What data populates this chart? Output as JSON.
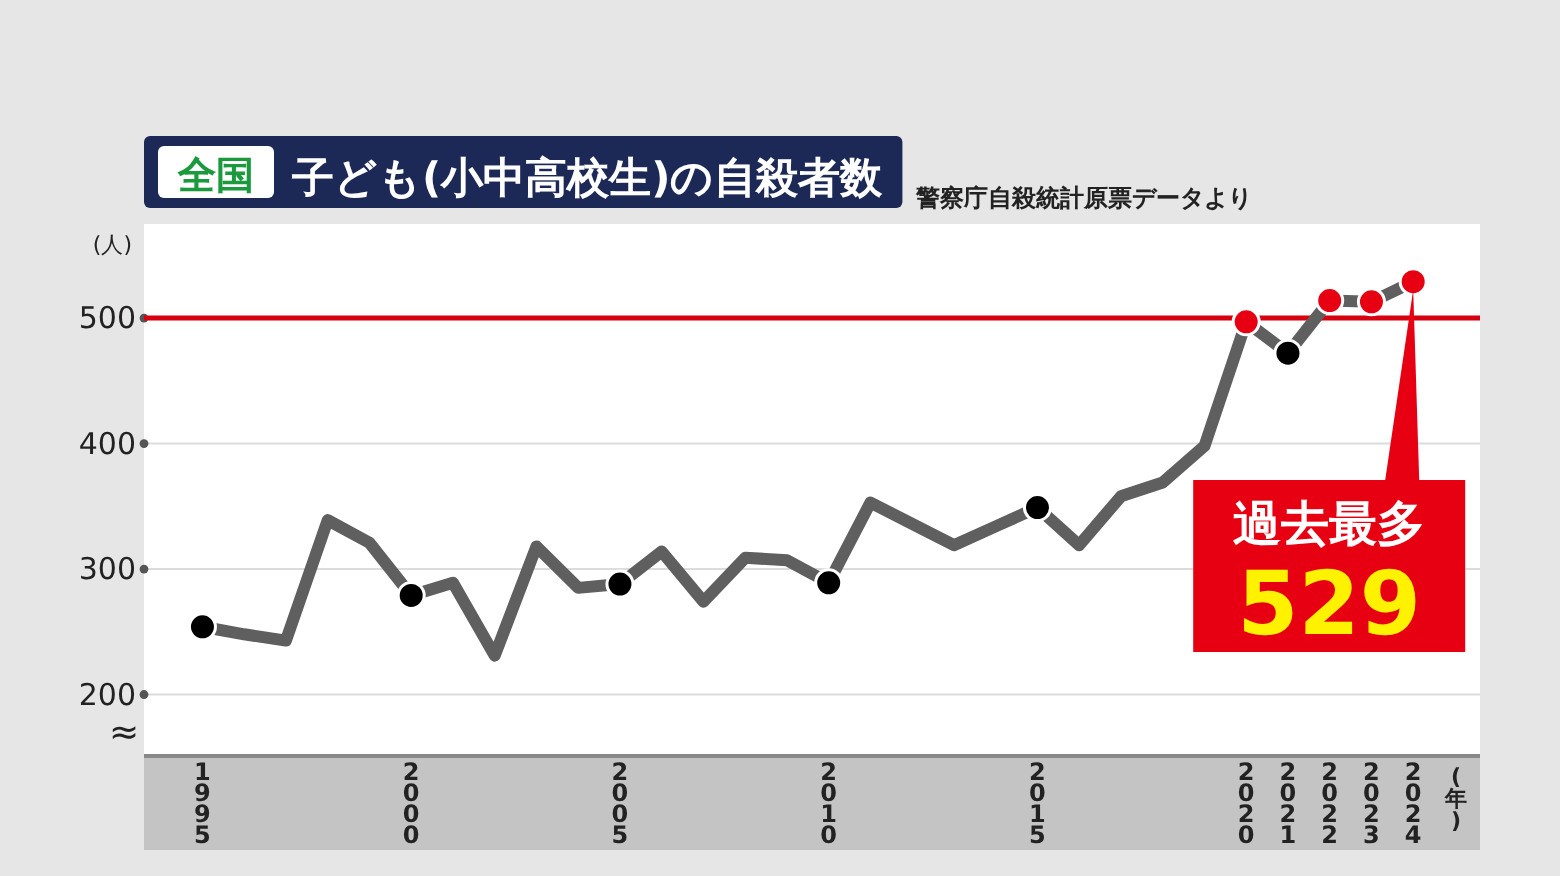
{
  "chart_data": {
    "type": "line",
    "title": "子ども(小中高校生)の自殺者数",
    "ylabel": "(人)",
    "xlabel": "(年)",
    "annotations": [
      "全国",
      "警察庁自殺統計原票データより",
      "≈",
      {
        "text": "過去最多 529",
        "x": 2024,
        "y": 529
      }
    ],
    "xlim": [
      1993.6,
      2025.6
    ],
    "ylim": [
      151,
      575
    ],
    "xticks": [
      1995,
      2000,
      2005,
      2010,
      2015,
      2020,
      2021,
      2022,
      2023,
      2024
    ],
    "yticks": [
      200,
      300,
      400,
      500
    ],
    "grid": "y",
    "ref_lines": [
      {
        "axis": "y",
        "value": 500,
        "color": "#d7000f"
      }
    ],
    "series": [
      {
        "type": "line",
        "color": "#5f5f5f",
        "marker": "none",
        "x": [
          1995,
          1996,
          1997,
          1998,
          1999,
          2000,
          2001,
          2002,
          2003,
          2004,
          2005,
          2006,
          2007,
          2008,
          2009,
          2010,
          2011,
          2012,
          2013,
          2014,
          2015,
          2016,
          2017,
          2018,
          2019,
          2020,
          2021,
          2022,
          2023,
          2024
        ],
        "values": [
          254,
          248,
          243,
          339,
          321,
          279,
          289,
          231,
          318,
          285,
          288,
          314,
          274,
          309,
          307,
          289,
          353,
          336,
          319,
          334,
          349,
          319,
          358,
          369,
          398,
          497,
          472,
          514,
          513,
          529
        ]
      },
      {
        "type": "scatter",
        "color": "#000000",
        "marker": "circle",
        "x": [
          1995,
          2000,
          2005,
          2010,
          2015,
          2021
        ],
        "values": [
          254,
          279,
          288,
          289,
          349,
          472
        ]
      },
      {
        "type": "scatter",
        "color": "#e60012",
        "marker": "circle",
        "x": [
          2020,
          2022,
          2023,
          2024
        ],
        "values": [
          497,
          514,
          513,
          529
        ]
      }
    ]
  }
}
